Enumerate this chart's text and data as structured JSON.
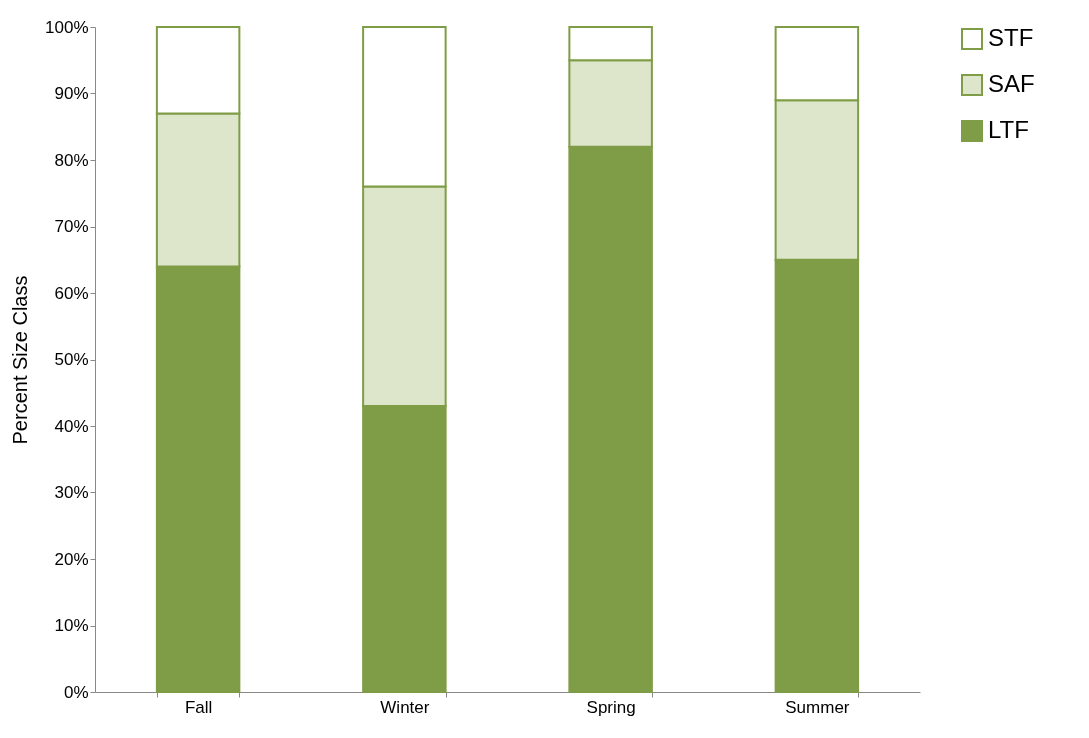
{
  "chart_data": {
    "type": "bar",
    "stacked": true,
    "ylabel": "Percent Size Class",
    "categories": [
      "Fall",
      "Winter",
      "Spring",
      "Summer"
    ],
    "series": [
      {
        "name": "LTF",
        "color": "#7f9c46",
        "values": [
          64,
          43,
          82,
          65
        ]
      },
      {
        "name": "SAF",
        "color": "#dde6cb",
        "values": [
          23,
          33,
          13,
          24
        ]
      },
      {
        "name": "STF",
        "color": "#ffffff",
        "values": [
          13,
          24,
          5,
          11
        ]
      }
    ],
    "ylim": [
      0,
      100
    ],
    "yticks": [
      {
        "value": 0,
        "label": "0%"
      },
      {
        "value": 10,
        "label": "10%"
      },
      {
        "value": 20,
        "label": "20%"
      },
      {
        "value": 30,
        "label": "30%"
      },
      {
        "value": 40,
        "label": "40%"
      },
      {
        "value": 50,
        "label": "50%"
      },
      {
        "value": 60,
        "label": "60%"
      },
      {
        "value": 70,
        "label": "70%"
      },
      {
        "value": 80,
        "label": "80%"
      },
      {
        "value": 90,
        "label": "90%"
      },
      {
        "value": 100,
        "label": "100%"
      }
    ],
    "grid": false,
    "legend": "right"
  }
}
